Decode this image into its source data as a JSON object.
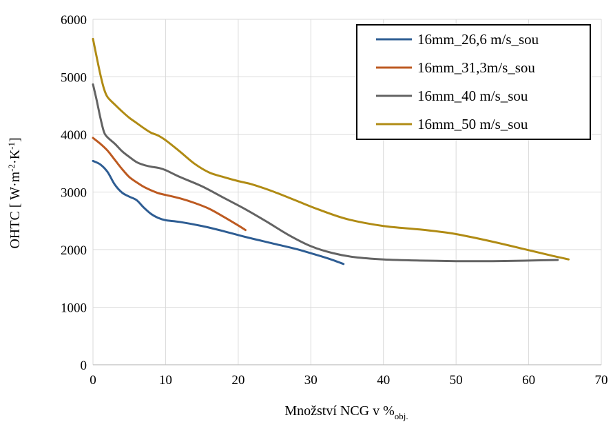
{
  "chart_data": {
    "type": "line",
    "title": "",
    "xlabel": "Množství NCG v %",
    "xlabel_subscript": "obj.",
    "ylabel": "OHTC [ W·m",
    "ylabel_parts": [
      "OHTC [ W·m",
      "-2",
      "·K",
      "-1",
      "]"
    ],
    "xlim": [
      0,
      70
    ],
    "ylim": [
      0,
      6000
    ],
    "x_ticks": [
      "0",
      "10",
      "20",
      "30",
      "40",
      "50",
      "60",
      "70"
    ],
    "y_ticks": [
      "0",
      "1000",
      "2000",
      "3000",
      "4000",
      "5000",
      "6000"
    ],
    "grid": true,
    "legend_position": "top-right",
    "series": [
      {
        "name": "16mm_26,6 m/s_sou",
        "color": "#2e5d93",
        "points": [
          [
            0,
            3540
          ],
          [
            1,
            3480
          ],
          [
            2,
            3350
          ],
          [
            3,
            3130
          ],
          [
            4,
            2990
          ],
          [
            5,
            2920
          ],
          [
            6,
            2860
          ],
          [
            7,
            2730
          ],
          [
            8,
            2620
          ],
          [
            9,
            2550
          ],
          [
            10,
            2510
          ],
          [
            12,
            2480
          ],
          [
            15,
            2410
          ],
          [
            18,
            2320
          ],
          [
            21,
            2220
          ],
          [
            25,
            2100
          ],
          [
            28,
            2010
          ],
          [
            31,
            1900
          ],
          [
            33,
            1820
          ],
          [
            34.5,
            1750
          ]
        ]
      },
      {
        "name": "16mm_31,3m/s_sou",
        "color": "#bd5a21",
        "points": [
          [
            0,
            3940
          ],
          [
            1,
            3840
          ],
          [
            2,
            3720
          ],
          [
            3,
            3560
          ],
          [
            4,
            3400
          ],
          [
            5,
            3260
          ],
          [
            6,
            3170
          ],
          [
            7,
            3090
          ],
          [
            8,
            3030
          ],
          [
            9,
            2980
          ],
          [
            10,
            2950
          ],
          [
            12,
            2890
          ],
          [
            14,
            2810
          ],
          [
            16,
            2710
          ],
          [
            18,
            2570
          ],
          [
            20,
            2420
          ],
          [
            21,
            2340
          ]
        ]
      },
      {
        "name": "16mm_40 m/s_sou",
        "color": "#636363",
        "points": [
          [
            0,
            4870
          ],
          [
            0.5,
            4600
          ],
          [
            1,
            4300
          ],
          [
            1.5,
            4050
          ],
          [
            2,
            3950
          ],
          [
            3,
            3840
          ],
          [
            4,
            3710
          ],
          [
            5,
            3610
          ],
          [
            6,
            3520
          ],
          [
            7,
            3470
          ],
          [
            8,
            3440
          ],
          [
            9,
            3420
          ],
          [
            10,
            3380
          ],
          [
            12,
            3260
          ],
          [
            15,
            3100
          ],
          [
            18,
            2900
          ],
          [
            21,
            2700
          ],
          [
            24,
            2480
          ],
          [
            27,
            2250
          ],
          [
            30,
            2060
          ],
          [
            33,
            1940
          ],
          [
            36,
            1870
          ],
          [
            40,
            1830
          ],
          [
            45,
            1810
          ],
          [
            50,
            1800
          ],
          [
            55,
            1800
          ],
          [
            60,
            1810
          ],
          [
            64,
            1820
          ]
        ]
      },
      {
        "name": "16mm_50 m/s_sou",
        "color": "#b08b14",
        "points": [
          [
            0,
            5660
          ],
          [
            0.5,
            5350
          ],
          [
            1,
            5050
          ],
          [
            1.5,
            4800
          ],
          [
            2,
            4650
          ],
          [
            3,
            4520
          ],
          [
            4,
            4400
          ],
          [
            5,
            4290
          ],
          [
            6,
            4200
          ],
          [
            7,
            4110
          ],
          [
            8,
            4030
          ],
          [
            9,
            3980
          ],
          [
            10,
            3900
          ],
          [
            12,
            3700
          ],
          [
            14,
            3490
          ],
          [
            16,
            3340
          ],
          [
            18,
            3260
          ],
          [
            20,
            3190
          ],
          [
            22,
            3130
          ],
          [
            25,
            3000
          ],
          [
            28,
            2850
          ],
          [
            31,
            2700
          ],
          [
            35,
            2530
          ],
          [
            40,
            2410
          ],
          [
            45,
            2350
          ],
          [
            49,
            2290
          ],
          [
            52,
            2220
          ],
          [
            56,
            2110
          ],
          [
            60,
            1990
          ],
          [
            63,
            1900
          ],
          [
            65.5,
            1830
          ]
        ]
      }
    ]
  }
}
